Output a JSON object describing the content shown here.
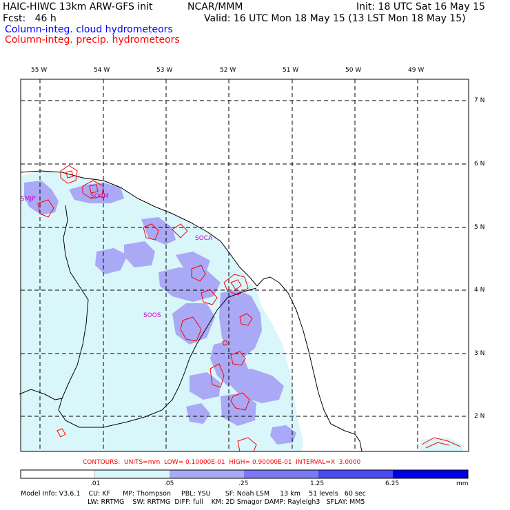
{
  "header": {
    "model_title": "HAIC-HIWC 13km ARW-GFS init",
    "org": "NCAR/MMM",
    "init": "Init: 18 UTC Sat 16 May 15",
    "fcst": "Fcst:   46 h",
    "valid": "Valid: 16 UTC Mon 18 May 15 (13 LST Mon 18 May 15)",
    "field1": {
      "text": "Column-integ. cloud hydrometeors",
      "color": "#0000ff"
    },
    "field2": {
      "text": "Column-integ. precip. hydrometeors",
      "color": "#ff0000"
    }
  },
  "map": {
    "lon_labels": [
      "55 W",
      "54 W",
      "53 W",
      "52 W",
      "51 W",
      "50 W",
      "49 W"
    ],
    "lat_labels": [
      "7 N",
      "6 N",
      "5 N",
      "4 N",
      "3 N",
      "2 N"
    ],
    "stations": [
      "SMJP",
      "SOCM",
      "SOCA",
      "SOOS"
    ],
    "colors": {
      "land": "#000000",
      "grid": "#000000",
      "contour": "#ff0000",
      "fill_low": "#d9f6fb",
      "fill_mid": "#a9a9f5"
    }
  },
  "contours_line": "CONTOURS:  UNITS=mm  LOW= 0.10000E-01  HIGH= 0.90000E-01  INTERVAL=X  3.0000",
  "colorbar": {
    "ticks": [
      ".01",
      ".05",
      ".25",
      "1.25",
      "6.25"
    ],
    "unit": "mm",
    "colors": [
      "#ffffff",
      "#d9f6fb",
      "#a9a9f5",
      "#7a7af5",
      "#4a4af5",
      "#0000e6"
    ]
  },
  "footer": {
    "line1": "Model Info: V3.6.1    CU: KF      MP: Thompson     PBL: YSU       SF: Noah LSM     13 km    51 levels   60 sec",
    "line2": "LW: RRTMG    SW: RRTMG  DIFF: full    KM: 2D Smagor DAMP: Rayleigh3   SFLAY: MM5"
  }
}
